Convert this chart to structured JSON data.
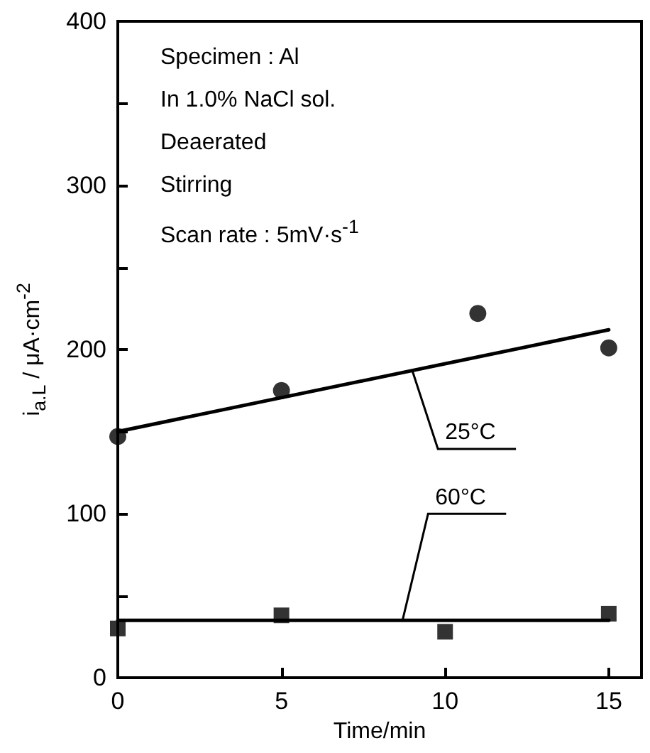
{
  "chart_data": {
    "type": "scatter",
    "xlabel": "Time/min",
    "ylabel": "i$_{a.L}$ / μA·cm$^{-2}$",
    "xlim": [
      0,
      16
    ],
    "xticks": [
      0,
      5,
      10,
      15
    ],
    "ylim": [
      0,
      400
    ],
    "yticks": [
      0,
      {
        "value": 50,
        "label": null
      },
      100,
      {
        "value": 150,
        "label": null
      },
      200,
      {
        "value": 250,
        "label": null
      },
      300,
      {
        "value": 350,
        "label": null
      },
      400
    ],
    "series": [
      {
        "marker": "circle",
        "color": "#000000",
        "x": [
          0,
          5,
          11,
          15
        ],
        "values": [
          147,
          175,
          222,
          201
        ]
      },
      {
        "type": "line",
        "marker": "none",
        "color": "#000000",
        "x": [
          0,
          15
        ],
        "values": [
          150,
          212
        ]
      },
      {
        "marker": "square",
        "color": "#000000",
        "x": [
          0,
          5,
          10,
          15
        ],
        "values": [
          30,
          38,
          28,
          39
        ]
      },
      {
        "type": "line",
        "marker": "none",
        "color": "#000000",
        "x": [
          0,
          15
        ],
        "values": [
          35,
          35
        ]
      }
    ],
    "annotations": [
      "Specimen : Al",
      "In 1.0% NaCl sol.",
      "Deaerated",
      "Stirring",
      "Scan rate : 5mV·s$^{-1}$",
      {
        "text": "25°C",
        "x": 9,
        "y": 187
      },
      {
        "text": "60°C",
        "x": 8.7,
        "y": 35
      }
    ]
  }
}
